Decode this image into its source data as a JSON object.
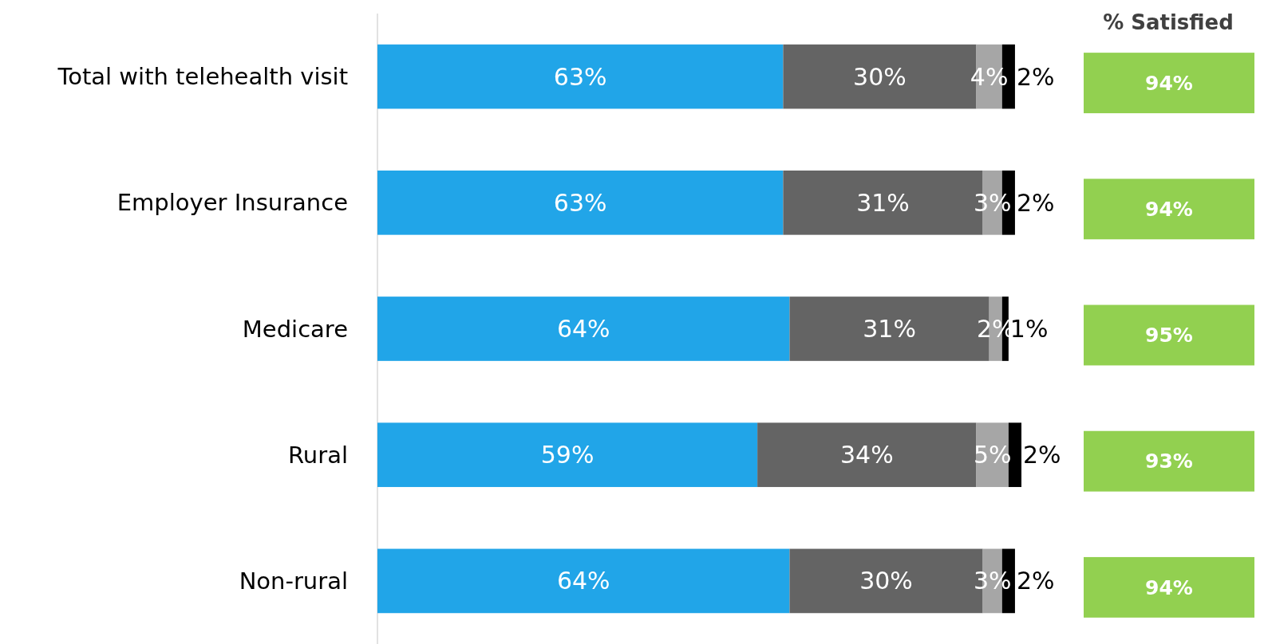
{
  "chart_data": [
    {
      "type": "bar",
      "orientation": "horizontal",
      "stacked": true,
      "categories": [
        "Total with telehealth visit",
        "Employer Insurance",
        "Medicare",
        "Rural",
        "Non-rural"
      ],
      "xlim": [
        0,
        100
      ],
      "tick_labels": "y",
      "series": [
        {
          "color": "#21a5e8",
          "values": [
            63,
            63,
            64,
            59,
            64
          ],
          "value_labels": [
            "63%",
            "63%",
            "64%",
            "59%",
            "64%"
          ]
        },
        {
          "color": "#646464",
          "values": [
            30,
            31,
            31,
            34,
            30
          ],
          "value_labels": [
            "30%",
            "31%",
            "31%",
            "34%",
            "30%"
          ]
        },
        {
          "color": "#a6a6a6",
          "values": [
            4,
            3,
            2,
            5,
            3
          ],
          "value_labels": [
            "4%",
            "3%",
            "2%",
            "5%",
            "3%"
          ]
        },
        {
          "color": "#000000",
          "values": [
            2,
            2,
            1,
            2,
            2
          ],
          "value_labels": [
            "2%",
            "2%",
            "1%",
            "2%",
            "2%"
          ]
        }
      ]
    },
    {
      "type": "other",
      "title": "% Satisfied",
      "colors": [
        "#92d050",
        "#92d050",
        "#92d050",
        "#92d050",
        "#92d050"
      ],
      "annotations": [
        "94%",
        "94%",
        "95%",
        "93%",
        "94%"
      ]
    }
  ]
}
